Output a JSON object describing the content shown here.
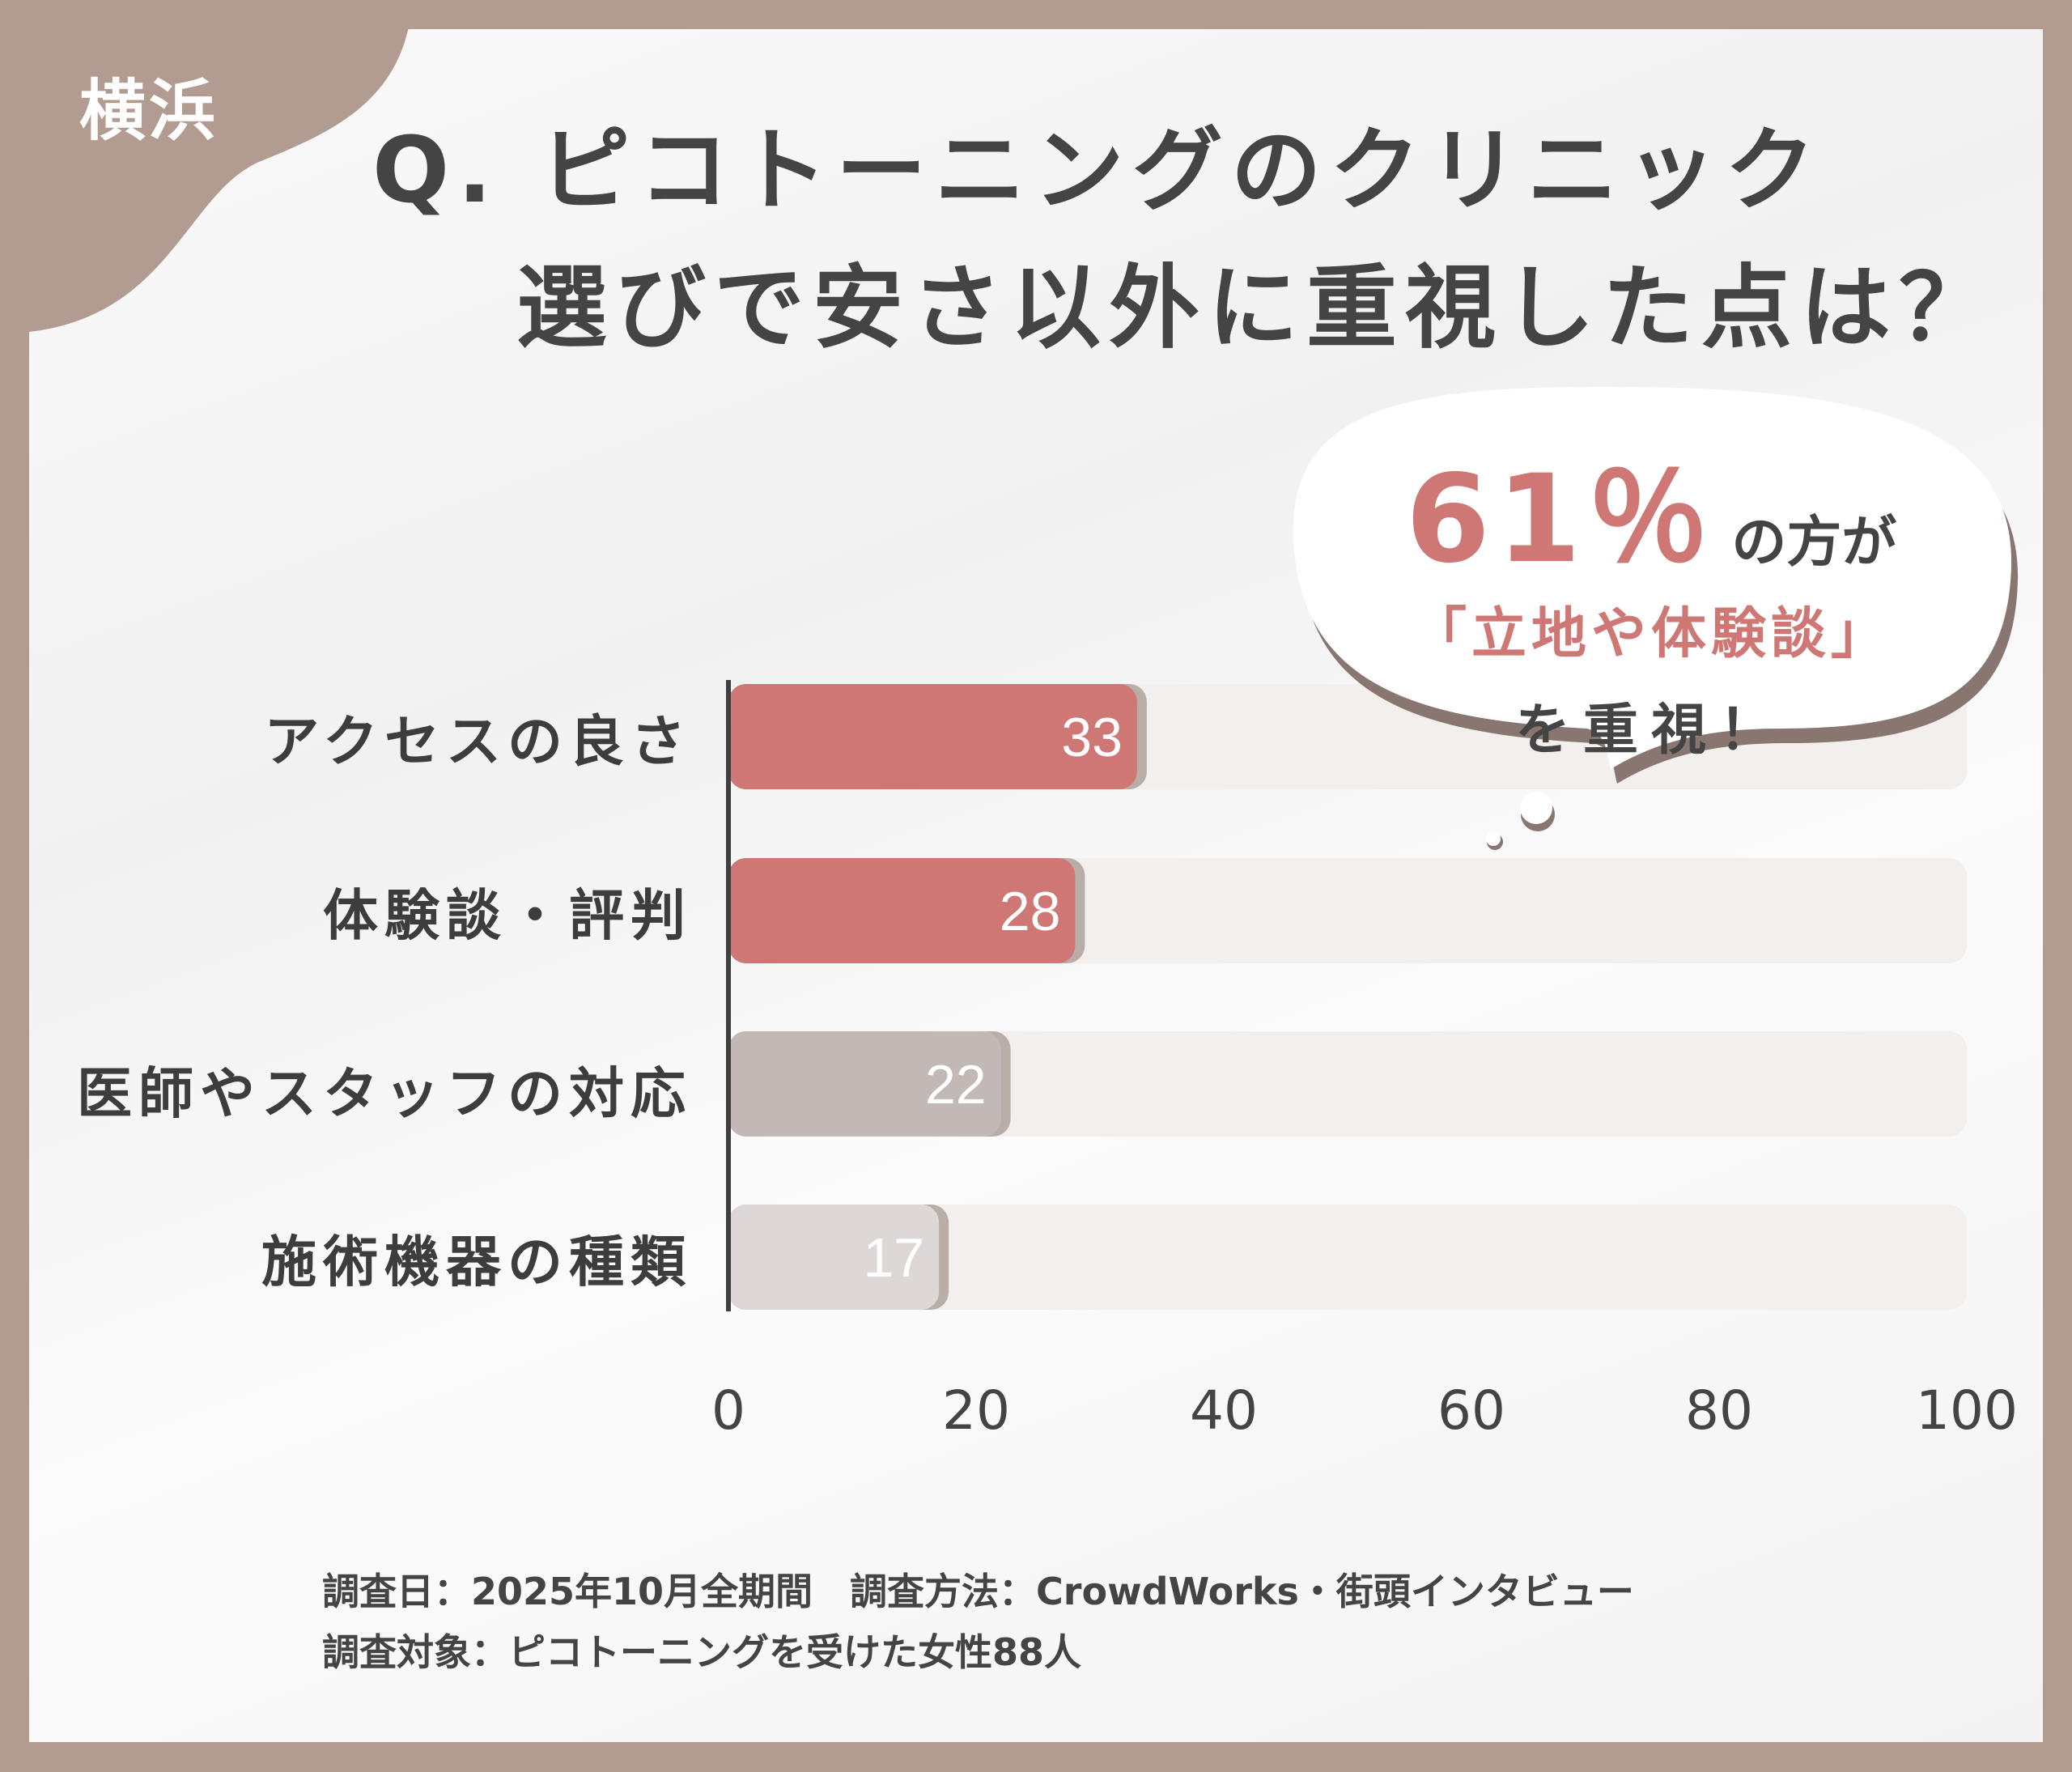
{
  "badge": "横浜",
  "title": {
    "line1": "Q. ピコトーニングのクリニック",
    "line2": "選びで安さ以外に重視した点は？"
  },
  "callout": {
    "percent": "61％",
    "line1_suffix": "の方が",
    "line2": "「立地や体験談」",
    "line3": "を重視！"
  },
  "chart_data": {
    "type": "bar",
    "orientation": "horizontal",
    "categories": [
      "アクセスの良さ",
      "体験談・評判",
      "医師やスタッフの対応",
      "施術機器の種類"
    ],
    "values": [
      33,
      28,
      22,
      17
    ],
    "xlim": [
      0,
      100
    ],
    "xticks": [
      "0",
      "20",
      "40",
      "60",
      "80",
      "100"
    ],
    "grid": false,
    "colors": [
      "#cf7774",
      "#cf7774",
      "#c2b8b5",
      "#ddd8d7"
    ],
    "track_color": "#f2efed"
  },
  "footer": {
    "line1": "調査日：2025年10月全期間　調査方法：CrowdWorks・街頭インタビュー",
    "line2": "調査対象：ピコトーニングを受けた女性88人"
  },
  "colors": {
    "frame": "#b29c91",
    "accent": "#cf7774",
    "text": "#444444"
  }
}
